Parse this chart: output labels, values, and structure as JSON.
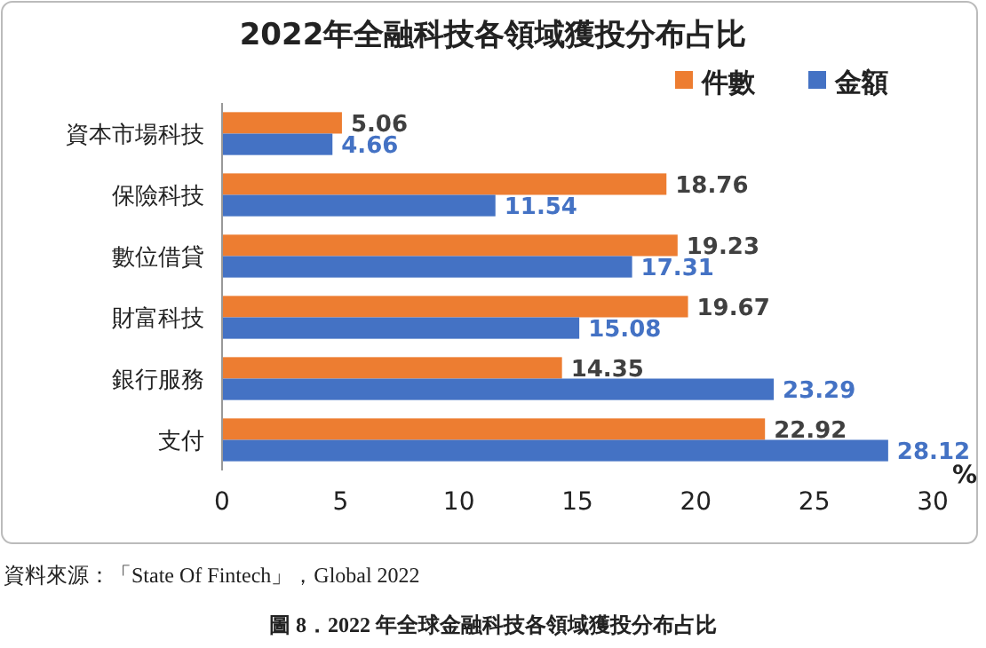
{
  "chart_data": {
    "type": "bar",
    "orientation": "horizontal",
    "title": "2022年全融科技各領域獲投分布占比",
    "xlabel": "%",
    "categories": [
      "資本市場科技",
      "保險科技",
      "數位借貸",
      "財富科技",
      "銀行服務",
      "支付"
    ],
    "series": [
      {
        "name": "件數",
        "color": "#ed7d31",
        "values": [
          5.06,
          18.76,
          19.23,
          19.67,
          14.35,
          22.92
        ]
      },
      {
        "name": "金額",
        "color": "#4472c4",
        "values": [
          4.66,
          11.54,
          17.31,
          15.08,
          23.29,
          28.12
        ]
      }
    ],
    "xlim": [
      0,
      30
    ],
    "xticks": [
      0,
      5,
      10,
      15,
      20,
      25,
      30
    ],
    "data_labels": true,
    "legend": "top right",
    "annotations": [
      "資料來源：「State Of Fintech」，Global 2022",
      "圖 8．2022 年全球金融科技各領域獲投分布占比"
    ]
  }
}
